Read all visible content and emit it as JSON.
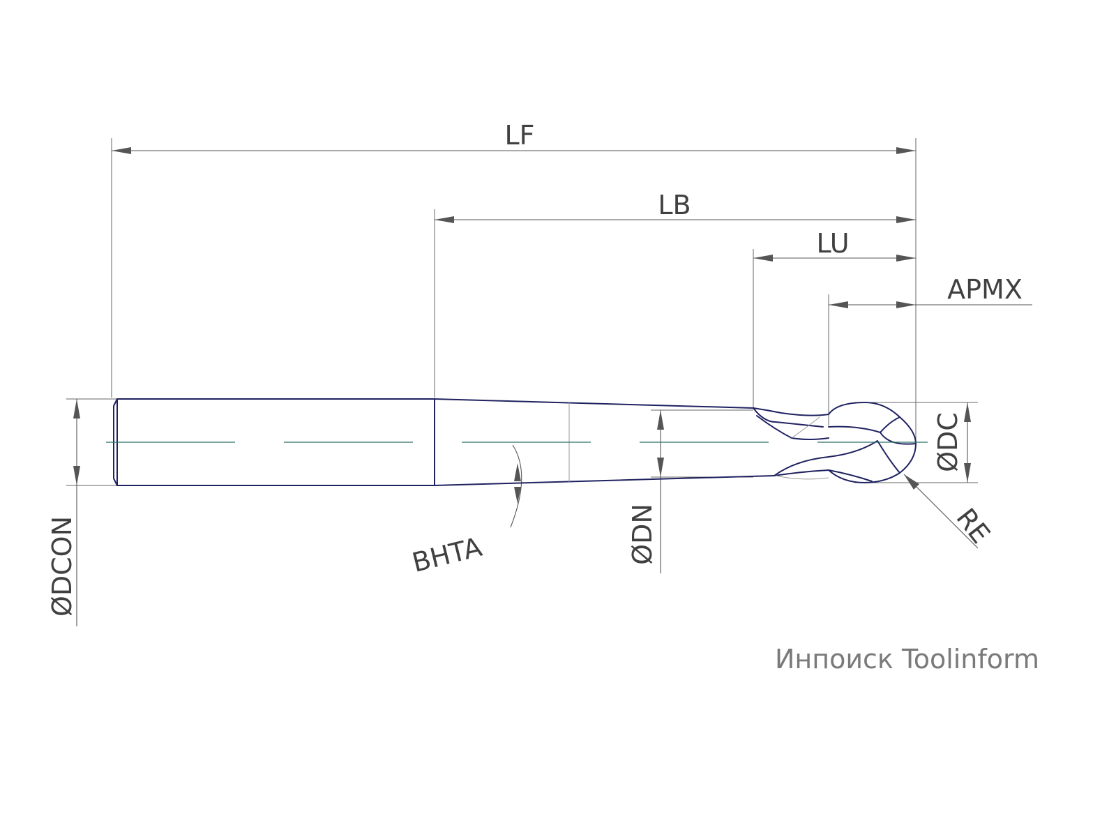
{
  "dimensions": {
    "lf": "LF",
    "lb": "LB",
    "lu": "LU",
    "apmx": "APMX",
    "dc": "ØDC",
    "re": "RE",
    "dn": "ØDN",
    "bhta": "BHTA",
    "dcon": "ØDCON"
  },
  "watermark": "Инпоиск Toolinform",
  "colors": {
    "outline": "#1f2260",
    "centerline": "#2f6f6a",
    "dimension": "#555555",
    "text": "#404040"
  }
}
